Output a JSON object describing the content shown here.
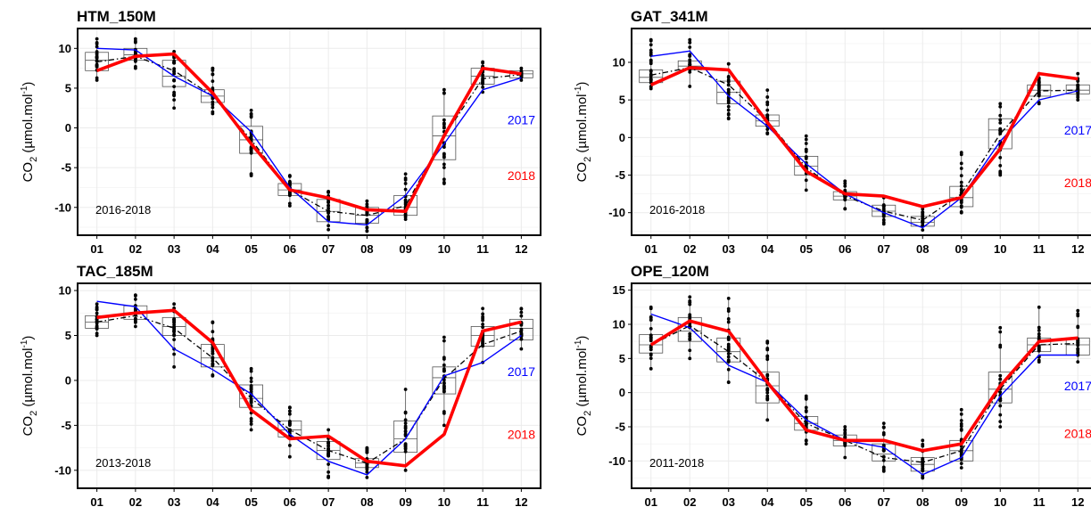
{
  "colors": {
    "series_2017": "#0000ff",
    "series_2018": "#ff0000",
    "mean": "#000000",
    "box": "#555555",
    "grid": "#ebebeb",
    "points": "#000000"
  },
  "ylabel_main": "CO",
  "ylabel_sub": "2",
  "ylabel_unit": " (µmol.mol",
  "ylabel_exp": "-1",
  "ylabel_close": ")",
  "chart_data": [
    {
      "type": "box+line",
      "title": "HTM_150M",
      "period": "2016-2018",
      "categories": [
        "01",
        "02",
        "03",
        "04",
        "05",
        "06",
        "07",
        "08",
        "09",
        "10",
        "11",
        "12"
      ],
      "ylim": [
        -13.5,
        12.5
      ],
      "yticks": [
        -10,
        -5,
        0,
        5,
        10
      ],
      "grid": true,
      "legend": "inline-right",
      "series": [
        {
          "name": "2017",
          "values": [
            10.0,
            9.8,
            6.5,
            4.0,
            -0.5,
            -7.5,
            -11.8,
            -12.2,
            -8.5,
            -2.0,
            4.8,
            6.3
          ]
        },
        {
          "name": "2018",
          "values": [
            7.2,
            9.0,
            9.3,
            4.4,
            -2.0,
            -7.8,
            -8.8,
            -10.3,
            -10.5,
            -1.0,
            7.5,
            6.8
          ]
        }
      ],
      "mean": [
        8.3,
        9.0,
        7.2,
        4.0,
        -1.5,
        -7.8,
        -10.5,
        -11.0,
        -9.8,
        -1.0,
        6.2,
        6.7
      ],
      "boxes": [
        {
          "q1": 7.2,
          "median": 8.5,
          "q3": 9.5,
          "min": 6.0,
          "max": 11.2
        },
        {
          "q1": 8.5,
          "median": 9.2,
          "q3": 10.0,
          "min": 7.5,
          "max": 11.2
        },
        {
          "q1": 5.2,
          "median": 6.5,
          "q3": 8.5,
          "min": 2.5,
          "max": 9.6
        },
        {
          "q1": 3.2,
          "median": 4.0,
          "q3": 4.8,
          "min": 1.8,
          "max": 7.5
        },
        {
          "q1": -3.2,
          "median": -1.5,
          "q3": 0.2,
          "min": -6.0,
          "max": 2.2
        },
        {
          "q1": -8.5,
          "median": -7.8,
          "q3": -7.0,
          "min": -9.8,
          "max": -6.0
        },
        {
          "q1": -11.8,
          "median": -10.5,
          "q3": -9.0,
          "min": -12.8,
          "max": -8.0
        },
        {
          "q1": -12.0,
          "median": -11.0,
          "q3": -10.0,
          "min": -13.0,
          "max": -9.2
        },
        {
          "q1": -11.0,
          "median": -10.0,
          "q3": -8.5,
          "min": -11.5,
          "max": -5.8
        },
        {
          "q1": -4.0,
          "median": -1.0,
          "q3": 1.5,
          "min": -7.0,
          "max": 4.8
        },
        {
          "q1": 5.5,
          "median": 6.5,
          "q3": 7.5,
          "min": 4.5,
          "max": 8.3
        },
        {
          "q1": 6.3,
          "median": 6.8,
          "q3": 7.2,
          "min": 6.0,
          "max": 7.5
        }
      ]
    },
    {
      "type": "box+line",
      "title": "GAT_341M",
      "period": "2016-2018",
      "categories": [
        "01",
        "02",
        "03",
        "04",
        "05",
        "06",
        "07",
        "08",
        "09",
        "10",
        "11",
        "12"
      ],
      "ylim": [
        -13.0,
        14.5
      ],
      "yticks": [
        -10,
        -5,
        0,
        5,
        10
      ],
      "grid": true,
      "legend": "inline-right",
      "series": [
        {
          "name": "2017",
          "values": [
            10.8,
            11.5,
            5.5,
            1.5,
            -3.5,
            -7.5,
            -10.0,
            -12.0,
            -8.0,
            -0.5,
            5.0,
            6.2
          ]
        },
        {
          "name": "2018",
          "values": [
            7.0,
            9.3,
            9.0,
            2.0,
            -4.5,
            -7.5,
            -7.8,
            -9.2,
            -8.0,
            -1.5,
            8.5,
            7.8
          ]
        }
      ],
      "mean": [
        8.3,
        9.3,
        7.0,
        2.2,
        -4.0,
        -7.8,
        -9.8,
        -11.0,
        -7.5,
        0.5,
        6.2,
        6.3
      ],
      "boxes": [
        {
          "q1": 7.3,
          "median": 8.0,
          "q3": 9.0,
          "min": 6.5,
          "max": 13.0
        },
        {
          "q1": 9.0,
          "median": 9.5,
          "q3": 10.2,
          "min": 6.8,
          "max": 13.0
        },
        {
          "q1": 4.5,
          "median": 6.0,
          "q3": 7.5,
          "min": 2.5,
          "max": 9.8
        },
        {
          "q1": 1.5,
          "median": 2.2,
          "q3": 3.0,
          "min": 0.5,
          "max": 6.3
        },
        {
          "q1": -5.0,
          "median": -3.8,
          "q3": -2.5,
          "min": -7.0,
          "max": 0.2
        },
        {
          "q1": -8.3,
          "median": -7.8,
          "q3": -7.2,
          "min": -9.5,
          "max": -5.8
        },
        {
          "q1": -10.5,
          "median": -9.8,
          "q3": -9.0,
          "min": -11.5,
          "max": -8.0
        },
        {
          "q1": -11.8,
          "median": -11.3,
          "q3": -10.5,
          "min": -12.3,
          "max": -9.5
        },
        {
          "q1": -9.2,
          "median": -8.0,
          "q3": -6.5,
          "min": -10.0,
          "max": -2.0
        },
        {
          "q1": -1.5,
          "median": 1.0,
          "q3": 2.5,
          "min": -5.0,
          "max": 4.5
        },
        {
          "q1": 5.5,
          "median": 6.3,
          "q3": 7.0,
          "min": 4.5,
          "max": 8.5
        },
        {
          "q1": 5.8,
          "median": 6.3,
          "q3": 7.0,
          "min": 5.0,
          "max": 8.5
        }
      ]
    },
    {
      "type": "box+line",
      "title": "TAC_185M",
      "period": "2013-2018",
      "categories": [
        "01",
        "02",
        "03",
        "04",
        "05",
        "06",
        "07",
        "08",
        "09",
        "10",
        "11",
        "12"
      ],
      "ylim": [
        -12.0,
        10.8
      ],
      "yticks": [
        -10,
        -5,
        0,
        5,
        10
      ],
      "grid": true,
      "legend": "inline-right",
      "series": [
        {
          "name": "2017",
          "values": [
            8.8,
            8.2,
            3.5,
            1.2,
            -1.5,
            -6.0,
            -9.0,
            -10.5,
            -6.5,
            0.5,
            2.0,
            5.0
          ]
        },
        {
          "name": "2018",
          "values": [
            7.0,
            7.5,
            7.8,
            4.2,
            -3.3,
            -6.5,
            -6.2,
            -9.0,
            -9.5,
            -6.0,
            5.5,
            6.5
          ]
        }
      ],
      "mean": [
        6.5,
        7.2,
        5.8,
        2.5,
        -2.0,
        -5.5,
        -7.8,
        -9.2,
        -6.5,
        0.2,
        4.0,
        5.5
      ],
      "boxes": [
        {
          "q1": 5.8,
          "median": 6.5,
          "q3": 7.2,
          "min": 5.0,
          "max": 8.5
        },
        {
          "q1": 6.8,
          "median": 7.5,
          "q3": 8.3,
          "min": 6.0,
          "max": 9.5
        },
        {
          "q1": 5.0,
          "median": 6.0,
          "q3": 7.0,
          "min": 1.5,
          "max": 8.5
        },
        {
          "q1": 1.5,
          "median": 2.5,
          "q3": 4.0,
          "min": 0.5,
          "max": 6.5
        },
        {
          "q1": -3.0,
          "median": -2.0,
          "q3": -0.5,
          "min": -5.5,
          "max": 1.3
        },
        {
          "q1": -6.3,
          "median": -5.5,
          "q3": -4.5,
          "min": -8.5,
          "max": -3.0
        },
        {
          "q1": -8.8,
          "median": -7.8,
          "q3": -6.8,
          "min": -10.8,
          "max": -5.5
        },
        {
          "q1": -9.7,
          "median": -9.2,
          "q3": -8.7,
          "min": -10.8,
          "max": -7.5
        },
        {
          "q1": -8.0,
          "median": -6.5,
          "q3": -4.5,
          "min": -10.0,
          "max": -1.0
        },
        {
          "q1": -1.5,
          "median": 0.3,
          "q3": 1.5,
          "min": -5.0,
          "max": 4.8
        },
        {
          "q1": 3.8,
          "median": 5.0,
          "q3": 6.0,
          "min": 2.0,
          "max": 8.0
        },
        {
          "q1": 4.5,
          "median": 5.8,
          "q3": 6.8,
          "min": 3.5,
          "max": 8.0
        }
      ]
    },
    {
      "type": "box+line",
      "title": "OPE_120M",
      "period": "2011-2018",
      "categories": [
        "01",
        "02",
        "03",
        "04",
        "05",
        "06",
        "07",
        "08",
        "09",
        "10",
        "11",
        "12"
      ],
      "ylim": [
        -14.0,
        16.0
      ],
      "yticks": [
        -10,
        -5,
        0,
        5,
        10,
        15
      ],
      "grid": true,
      "legend": "inline-right",
      "series": [
        {
          "name": "2017",
          "values": [
            11.5,
            9.5,
            4.0,
            1.5,
            -4.0,
            -7.0,
            -8.0,
            -12.0,
            -9.5,
            -0.5,
            5.5,
            5.5
          ]
        },
        {
          "name": "2018",
          "values": [
            7.0,
            10.5,
            9.0,
            1.5,
            -5.5,
            -7.0,
            -7.0,
            -8.5,
            -7.5,
            1.0,
            7.5,
            8.0
          ]
        }
      ],
      "mean": [
        7.0,
        9.8,
        6.0,
        1.5,
        -4.5,
        -7.0,
        -9.5,
        -10.2,
        -8.5,
        0.5,
        7.0,
        7.2
      ],
      "boxes": [
        {
          "q1": 5.8,
          "median": 7.0,
          "q3": 8.5,
          "min": 3.5,
          "max": 12.5
        },
        {
          "q1": 7.5,
          "median": 9.0,
          "q3": 11.0,
          "min": 5.0,
          "max": 14.0
        },
        {
          "q1": 4.5,
          "median": 6.0,
          "q3": 8.0,
          "min": 1.5,
          "max": 13.8
        },
        {
          "q1": -1.5,
          "median": 1.0,
          "q3": 3.0,
          "min": -4.0,
          "max": 7.5
        },
        {
          "q1": -5.5,
          "median": -4.5,
          "q3": -3.5,
          "min": -7.5,
          "max": -0.5
        },
        {
          "q1": -7.8,
          "median": -7.0,
          "q3": -6.2,
          "min": -9.5,
          "max": -5.0
        },
        {
          "q1": -10.0,
          "median": -9.0,
          "q3": -7.5,
          "min": -11.5,
          "max": -4.5
        },
        {
          "q1": -11.5,
          "median": -10.5,
          "q3": -9.5,
          "min": -12.5,
          "max": -7.0
        },
        {
          "q1": -10.0,
          "median": -8.5,
          "q3": -7.0,
          "min": -11.0,
          "max": -2.5
        },
        {
          "q1": -1.5,
          "median": 0.5,
          "q3": 3.0,
          "min": -5.0,
          "max": 9.5
        },
        {
          "q1": 6.0,
          "median": 7.0,
          "q3": 8.0,
          "min": 4.5,
          "max": 12.5
        },
        {
          "q1": 5.5,
          "median": 7.0,
          "q3": 8.0,
          "min": 4.5,
          "max": 12.0
        }
      ]
    }
  ]
}
